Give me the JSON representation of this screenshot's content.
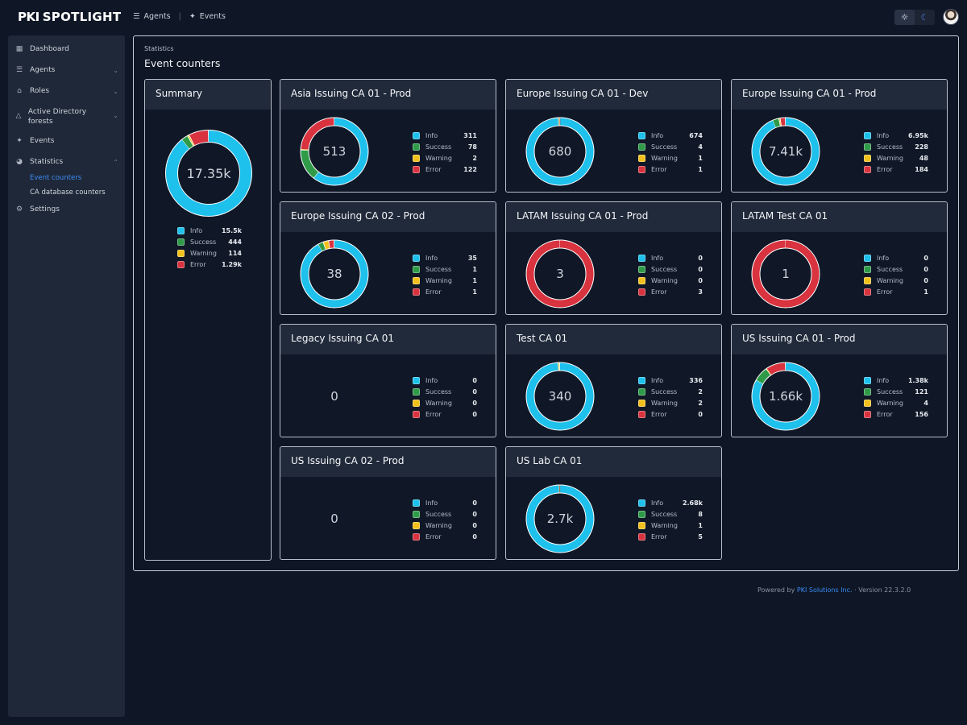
{
  "app": {
    "logo_pki": "PKI",
    "logo_name": "SPOTLIGHT"
  },
  "topnav": {
    "agents": "Agents",
    "events": "Events"
  },
  "sidebar": {
    "items": [
      {
        "label": "Dashboard",
        "icon": "grid-icon"
      },
      {
        "label": "Agents",
        "icon": "agents-icon"
      },
      {
        "label": "Roles",
        "icon": "tag-icon"
      },
      {
        "label": "Active Directory forests",
        "icon": "triangle-icon"
      },
      {
        "label": "Events",
        "icon": "sparkle-icon"
      },
      {
        "label": "Statistics",
        "icon": "pie-icon"
      },
      {
        "label": "Settings",
        "icon": "gear-icon"
      }
    ],
    "sub_event_counters": "Event counters",
    "sub_ca_db_counters": "CA database counters"
  },
  "breadcrumb": "Statistics",
  "page_title": "Event counters",
  "legend_labels": {
    "info": "Info",
    "success": "Success",
    "warning": "Warning",
    "error": "Error"
  },
  "colors": {
    "info": "#1ec0ec",
    "success": "#2f9a48",
    "warning": "#f2c01c",
    "error": "#d8333f",
    "empty": "#101827",
    "link": "#3b8cf5"
  },
  "chart_data": [
    {
      "type": "pie",
      "title": "Summary",
      "total": "17.35k",
      "labels": [
        "Info",
        "Success",
        "Warning",
        "Error"
      ],
      "values": [
        15500,
        444,
        114,
        1290
      ],
      "display": [
        "15.5k",
        "444",
        "114",
        "1.29k"
      ]
    },
    {
      "type": "pie",
      "title": "Asia Issuing CA 01 - Prod",
      "total": "513",
      "labels": [
        "Info",
        "Success",
        "Warning",
        "Error"
      ],
      "values": [
        311,
        78,
        2,
        122
      ],
      "display": [
        "311",
        "78",
        "2",
        "122"
      ]
    },
    {
      "type": "pie",
      "title": "Europe Issuing CA 01 - Dev",
      "total": "680",
      "labels": [
        "Info",
        "Success",
        "Warning",
        "Error"
      ],
      "values": [
        674,
        4,
        1,
        1
      ],
      "display": [
        "674",
        "4",
        "1",
        "1"
      ]
    },
    {
      "type": "pie",
      "title": "Europe Issuing CA 01 - Prod",
      "total": "7.41k",
      "labels": [
        "Info",
        "Success",
        "Warning",
        "Error"
      ],
      "values": [
        6950,
        228,
        48,
        184
      ],
      "display": [
        "6.95k",
        "228",
        "48",
        "184"
      ]
    },
    {
      "type": "pie",
      "title": "Europe Issuing CA 02 - Prod",
      "total": "38",
      "labels": [
        "Info",
        "Success",
        "Warning",
        "Error"
      ],
      "values": [
        35,
        1,
        1,
        1
      ],
      "display": [
        "35",
        "1",
        "1",
        "1"
      ]
    },
    {
      "type": "pie",
      "title": "LATAM Issuing CA 01 - Prod",
      "total": "3",
      "labels": [
        "Info",
        "Success",
        "Warning",
        "Error"
      ],
      "values": [
        0,
        0,
        0,
        3
      ],
      "display": [
        "0",
        "0",
        "0",
        "3"
      ]
    },
    {
      "type": "pie",
      "title": "LATAM Test CA 01",
      "total": "1",
      "labels": [
        "Info",
        "Success",
        "Warning",
        "Error"
      ],
      "values": [
        0,
        0,
        0,
        1
      ],
      "display": [
        "0",
        "0",
        "0",
        "1"
      ]
    },
    {
      "type": "pie",
      "title": "Legacy Issuing CA 01",
      "total": "0",
      "labels": [
        "Info",
        "Success",
        "Warning",
        "Error"
      ],
      "values": [
        0,
        0,
        0,
        0
      ],
      "display": [
        "0",
        "0",
        "0",
        "0"
      ]
    },
    {
      "type": "pie",
      "title": "Test CA 01",
      "total": "340",
      "labels": [
        "Info",
        "Success",
        "Warning",
        "Error"
      ],
      "values": [
        336,
        2,
        2,
        0
      ],
      "display": [
        "336",
        "2",
        "2",
        "0"
      ]
    },
    {
      "type": "pie",
      "title": "US Issuing CA 01 - Prod",
      "total": "1.66k",
      "labels": [
        "Info",
        "Success",
        "Warning",
        "Error"
      ],
      "values": [
        1380,
        121,
        4,
        156
      ],
      "display": [
        "1.38k",
        "121",
        "4",
        "156"
      ]
    },
    {
      "type": "pie",
      "title": "US Issuing CA 02 - Prod",
      "total": "0",
      "labels": [
        "Info",
        "Success",
        "Warning",
        "Error"
      ],
      "values": [
        0,
        0,
        0,
        0
      ],
      "display": [
        "0",
        "0",
        "0",
        "0"
      ]
    },
    {
      "type": "pie",
      "title": "US Lab CA 01",
      "total": "2.7k",
      "labels": [
        "Info",
        "Success",
        "Warning",
        "Error"
      ],
      "values": [
        2680,
        8,
        1,
        5
      ],
      "display": [
        "2.68k",
        "8",
        "1",
        "5"
      ]
    }
  ],
  "footer": {
    "powered_by": "Powered by",
    "company": "PKI Solutions Inc.",
    "separator": "·",
    "version": "Version 22.3.2.0"
  }
}
